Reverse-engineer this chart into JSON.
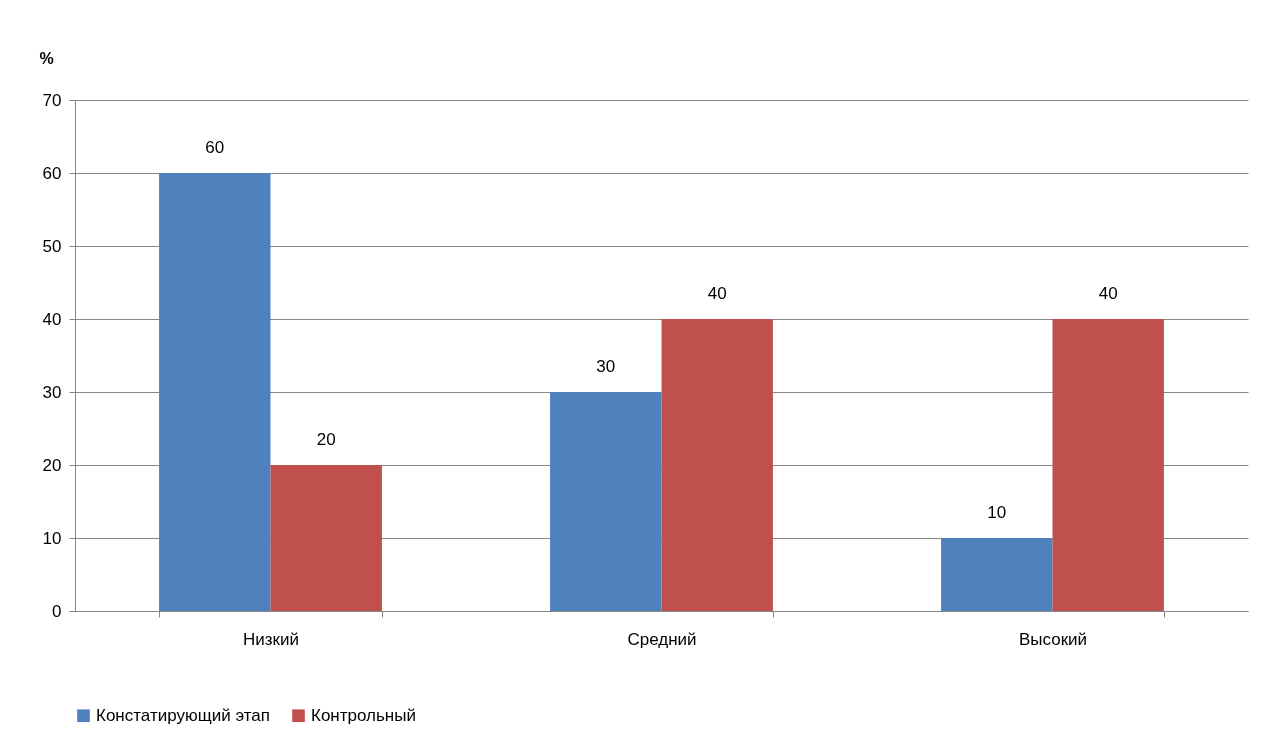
{
  "chart_data": {
    "type": "bar",
    "ylabel": "%",
    "categories": [
      "Низкий",
      "Средний",
      "Высокий"
    ],
    "series": [
      {
        "name": "Констатирующий этап",
        "color": "#4f81bd",
        "values": [
          60,
          30,
          10
        ]
      },
      {
        "name": "Контрольный",
        "color": "#c0504d",
        "values": [
          20,
          40,
          40
        ]
      }
    ],
    "ylim": [
      0,
      70
    ],
    "yticks": [
      0,
      10,
      20,
      30,
      40,
      50,
      60,
      70
    ],
    "grid": "y",
    "legend": "bottom",
    "data_labels": true
  }
}
